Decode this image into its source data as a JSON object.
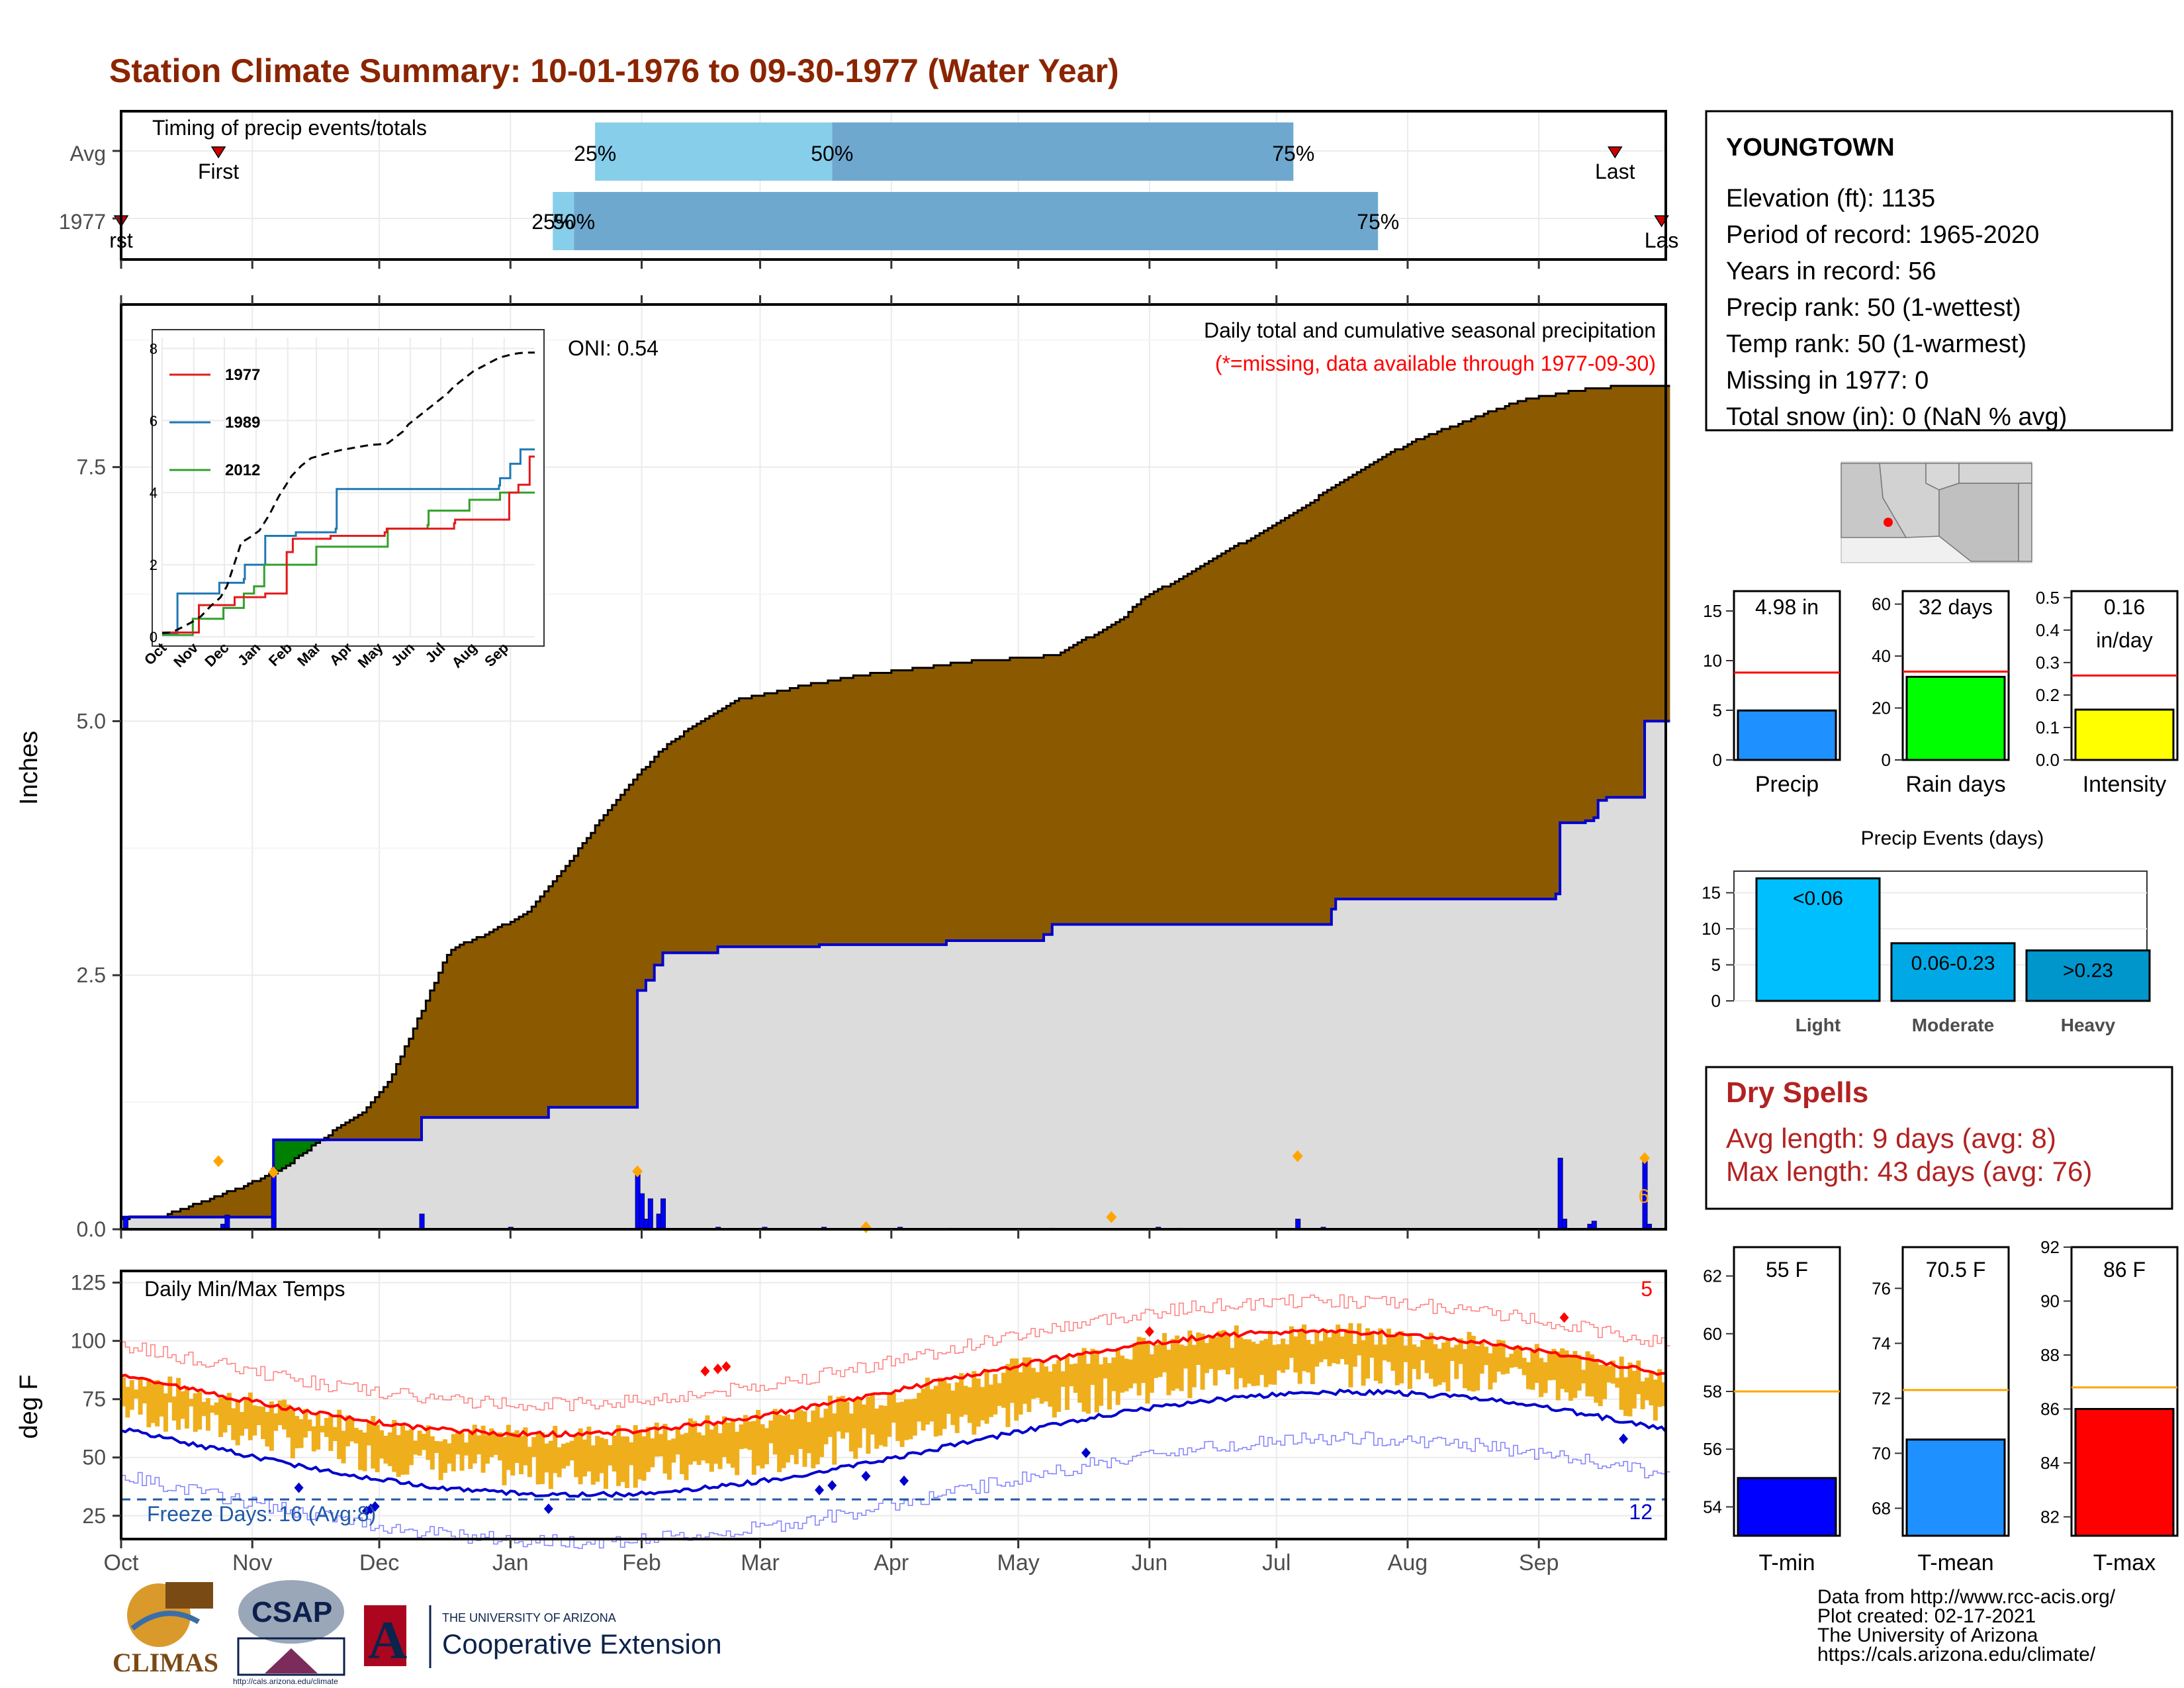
{
  "title": "Station Climate Summary: 10-01-1976 to 09-30-1977 (Water Year)",
  "months": [
    "Oct",
    "Nov",
    "Dec",
    "Jan",
    "Feb",
    "Mar",
    "Apr",
    "May",
    "Jun",
    "Jul",
    "Aug",
    "Sep"
  ],
  "timing": {
    "label": "Timing of precip events/totals",
    "rows": [
      "Avg",
      "1977"
    ],
    "pct_labels": [
      "25%",
      "50%",
      "75%"
    ],
    "first_label": "First",
    "last_label": "Last",
    "first_label_clipped": "rst",
    "last_label_clipped": "Las",
    "avg": {
      "first_day": 23,
      "p25": 112,
      "p50": 168,
      "p75": 277,
      "last_day": 353
    },
    "yr": {
      "first_day": 0,
      "p25": 102,
      "p50": 107,
      "p75": 297,
      "last_day": 364
    }
  },
  "precip": {
    "ylabel": "Inches",
    "oni": "ONI: 0.54",
    "caption1": "Daily total and cumulative seasonal precipitation",
    "caption2": "(*=missing, data available through 1977-09-30)",
    "side_count": "6",
    "yticks": [
      "0.0",
      "2.5",
      "5.0",
      "7.5"
    ],
    "avg_cum": [
      [
        0,
        0.1
      ],
      [
        15,
        0.14
      ],
      [
        30,
        0.27
      ],
      [
        45,
        0.42
      ],
      [
        60,
        0.6
      ],
      [
        75,
        0.85
      ],
      [
        90,
        1.12
      ],
      [
        100,
        1.55
      ],
      [
        110,
        2.12
      ],
      [
        122,
        2.75
      ],
      [
        135,
        2.95
      ],
      [
        150,
        3.15
      ],
      [
        165,
        3.6
      ],
      [
        180,
        4.1
      ],
      [
        200,
        4.6
      ],
      [
        220,
        5.0
      ],
      [
        245,
        5.28
      ],
      [
        275,
        5.45
      ],
      [
        300,
        5.55
      ],
      [
        330,
        5.6
      ],
      [
        348,
        5.62
      ],
      [
        365,
        5.62
      ],
      [
        380,
        5.7
      ],
      [
        400,
        6.0
      ],
      [
        420,
        6.25
      ],
      [
        440,
        6.52
      ],
      [
        460,
        6.95
      ],
      [
        480,
        7.3
      ],
      [
        500,
        7.6
      ],
      [
        520,
        7.8
      ],
      [
        545,
        8.1
      ],
      [
        575,
        8.28
      ]
    ],
    "avg_cum_note": "",
    "season_avg": [
      [
        0,
        0.11
      ],
      [
        15,
        0.13
      ],
      [
        30,
        0.27
      ],
      [
        45,
        0.42
      ],
      [
        60,
        0.6
      ],
      [
        75,
        0.9
      ],
      [
        90,
        1.15
      ],
      [
        100,
        1.48
      ],
      [
        110,
        2.05
      ],
      [
        122,
        2.75
      ],
      [
        135,
        2.9
      ],
      [
        150,
        3.1
      ],
      [
        165,
        3.55
      ],
      [
        180,
        4.1
      ],
      [
        190,
        4.4
      ],
      [
        200,
        4.7
      ],
      [
        215,
        5.0
      ],
      [
        230,
        5.22
      ],
      [
        245,
        5.3
      ],
      [
        260,
        5.38
      ],
      [
        275,
        5.45
      ],
      [
        290,
        5.5
      ],
      [
        305,
        5.55
      ],
      [
        320,
        5.6
      ],
      [
        335,
        5.62
      ],
      [
        348,
        5.65
      ],
      [
        355,
        5.75
      ],
      [
        365,
        5.9
      ],
      [
        372,
        6.0
      ],
      [
        380,
        6.2
      ],
      [
        390,
        6.35
      ],
      [
        400,
        6.5
      ],
      [
        410,
        6.65
      ],
      [
        420,
        6.8
      ],
      [
        430,
        6.95
      ],
      [
        440,
        7.1
      ],
      [
        450,
        7.3
      ],
      [
        460,
        7.45
      ],
      [
        470,
        7.6
      ],
      [
        480,
        7.75
      ],
      [
        490,
        7.85
      ],
      [
        500,
        7.95
      ],
      [
        510,
        8.05
      ],
      [
        520,
        8.15
      ],
      [
        530,
        8.2
      ],
      [
        540,
        8.25
      ],
      [
        550,
        8.28
      ],
      [
        560,
        8.3
      ],
      [
        575,
        8.3
      ]
    ],
    "yr_cum_steps": [
      [
        0,
        0.11
      ],
      [
        24,
        0.13
      ],
      [
        25,
        0.13
      ],
      [
        35,
        0.3
      ],
      [
        36,
        0.88
      ],
      [
        70,
        0.88
      ],
      [
        71,
        1.1
      ],
      [
        92,
        1.1
      ],
      [
        93,
        1.2
      ],
      [
        101,
        1.2
      ],
      [
        102,
        1.2
      ],
      [
        121,
        1.2
      ],
      [
        122,
        2.35
      ],
      [
        124,
        2.45
      ],
      [
        126,
        2.6
      ],
      [
        128,
        2.72
      ],
      [
        141,
        2.78
      ],
      [
        165,
        2.8
      ],
      [
        166,
        2.8
      ],
      [
        195,
        2.84
      ],
      [
        200,
        2.84
      ],
      [
        218,
        2.9
      ],
      [
        220,
        3.0
      ],
      [
        277,
        3.0
      ],
      [
        278,
        3.02
      ],
      [
        285,
        3.02
      ],
      [
        286,
        3.15
      ],
      [
        287,
        3.25
      ],
      [
        339,
        3.3
      ],
      [
        340,
        4.0
      ],
      [
        370,
        4.0
      ],
      [
        371,
        4.02
      ],
      [
        372,
        4.05
      ],
      [
        373,
        4.1
      ],
      [
        374,
        4.15
      ],
      [
        375,
        4.2
      ],
      [
        376,
        4.25
      ],
      [
        377,
        4.3
      ],
      [
        378,
        4.38
      ],
      [
        379,
        4.42
      ],
      [
        380,
        4.45
      ],
      [
        381,
        4.5
      ],
      [
        382,
        4.55
      ],
      [
        383,
        4.6
      ],
      [
        384,
        4.68
      ],
      [
        385,
        4.7
      ],
      [
        386,
        4.75
      ],
      [
        387,
        4.78
      ],
      [
        388,
        4.8
      ],
      [
        389,
        4.85
      ],
      [
        390,
        4.88
      ],
      [
        391,
        4.9
      ],
      [
        392,
        4.95
      ],
      [
        393,
        5.0
      ],
      [
        394,
        5.02
      ],
      [
        395,
        5.03
      ],
      [
        396,
        5.05
      ],
      [
        397,
        5.07
      ],
      [
        398,
        5.08
      ],
      [
        399,
        5.1
      ],
      [
        400,
        5.12
      ],
      [
        401,
        5.14
      ]
    ],
    "yr_cum": [
      [
        0,
        0.12
      ],
      [
        24,
        0.12
      ],
      [
        36,
        0.88
      ],
      [
        71,
        1.1
      ],
      [
        101,
        1.2
      ],
      [
        102,
        1.2
      ],
      [
        122,
        2.35
      ],
      [
        124,
        2.45
      ],
      [
        126,
        2.6
      ],
      [
        128,
        2.72
      ],
      [
        141,
        2.78
      ],
      [
        165,
        2.8
      ],
      [
        195,
        2.84
      ],
      [
        218,
        2.9
      ],
      [
        220,
        3.0
      ],
      [
        278,
        3.0
      ],
      [
        286,
        3.15
      ],
      [
        287,
        3.25
      ],
      [
        339,
        3.3
      ],
      [
        340,
        4.0
      ],
      [
        345,
        4.0
      ],
      [
        346,
        4.02
      ],
      [
        348,
        4.05
      ],
      [
        349,
        4.22
      ],
      [
        351,
        4.25
      ],
      [
        359,
        4.25
      ],
      [
        360,
        5.0
      ],
      [
        365,
        5.0
      ]
    ],
    "daily": [
      [
        1,
        0.12
      ],
      [
        24,
        0.05
      ],
      [
        25,
        0.14
      ],
      [
        36,
        0.6
      ],
      [
        71,
        0.15
      ],
      [
        92,
        0.02
      ],
      [
        122,
        0.55
      ],
      [
        123,
        0.35
      ],
      [
        124,
        0.1
      ],
      [
        125,
        0.3
      ],
      [
        127,
        0.15
      ],
      [
        128,
        0.3
      ],
      [
        141,
        0.02
      ],
      [
        152,
        0.02
      ],
      [
        166,
        0.02
      ],
      [
        184,
        0.02
      ],
      [
        196,
        0.01
      ],
      [
        220,
        0.01
      ],
      [
        245,
        0.02
      ],
      [
        250,
        0.01
      ],
      [
        278,
        0.1
      ],
      [
        284,
        0.02
      ],
      [
        340,
        0.7
      ],
      [
        341,
        0.1
      ],
      [
        346,
        0.01
      ],
      [
        347,
        0.05
      ],
      [
        348,
        0.08
      ],
      [
        360,
        0.72
      ],
      [
        361,
        0.05
      ]
    ],
    "diamonds": [
      [
        23,
        0.67
      ],
      [
        36,
        0.56
      ],
      [
        122,
        0.57
      ],
      [
        176,
        0.02
      ],
      [
        234,
        0.12
      ],
      [
        278,
        0.72
      ],
      [
        360,
        0.7
      ]
    ],
    "inset": {
      "legend": [
        "1977",
        "1989",
        "2012"
      ],
      "yticks": [
        "0",
        "2",
        "4",
        "6",
        "8"
      ],
      "xticks": [
        "Oct",
        "Nov",
        "Dec",
        "Jan",
        "Feb",
        "Mar",
        "Apr",
        "May",
        "Jun",
        "Jul",
        "Aug",
        "Sep"
      ]
    }
  },
  "temps": {
    "ylabel": "deg F",
    "label": "Daily Min/Max Temps",
    "freeze": "Freeze Days: 16 (Avg:8)",
    "hot_count": "5",
    "cold_count": "12",
    "yticks": [
      "25",
      "50",
      "75",
      "100",
      "125"
    ]
  },
  "station": {
    "name": "YOUNGTOWN",
    "lines": [
      "Elevation (ft): 1135",
      "Period of record: 1965-2020",
      "Years in record: 56",
      "Precip rank: 50 (1-wettest)",
      "Temp rank: 50 (1-warmest)",
      "Missing in 1977: 0",
      "Total snow (in): 0 (NaN % avg)"
    ]
  },
  "mini_bars": [
    {
      "label": "Precip",
      "value_text": "4.98 in",
      "value": 4.98,
      "avg": 8.8,
      "max": 17,
      "yticks": [
        "0",
        "5",
        "10",
        "15"
      ],
      "color": "#1e90ff"
    },
    {
      "label": "Rain days",
      "value_text": "32 days",
      "value": 32,
      "avg": 34,
      "max": 65,
      "yticks": [
        "0",
        "20",
        "40",
        "60"
      ],
      "color": "#00ff00"
    },
    {
      "label": "Intensity",
      "value_text": "0.16",
      "value_text2": "in/day",
      "value": 0.155,
      "avg": 0.26,
      "max": 0.52,
      "yticks": [
        "0.0",
        "0.1",
        "0.2",
        "0.3",
        "0.4",
        "0.5"
      ],
      "color": "#ffff00"
    }
  ],
  "events": {
    "title": "Precip Events (days)",
    "categories": [
      "Light",
      "Moderate",
      "Heavy"
    ],
    "labels": [
      "<0.06",
      "0.06-0.23",
      ">0.23"
    ],
    "values": [
      17,
      8,
      7
    ],
    "colors": [
      "#00bfff",
      "#00a9e6",
      "#0096cc"
    ],
    "yticks": [
      "0",
      "5",
      "10",
      "15"
    ]
  },
  "dry": {
    "title": "Dry Spells",
    "avg": "Avg length: 9 days (avg: 8)",
    "max": "Max length: 43 days (avg: 76)"
  },
  "temp_bars": [
    {
      "label": "T-min",
      "value_text": "55 F",
      "value": 55,
      "avg": 58,
      "min": 53,
      "max": 63,
      "yticks": [
        "54",
        "56",
        "58",
        "60",
        "62"
      ],
      "color": "#0000ff"
    },
    {
      "label": "T-mean",
      "value_text": "70.5 F",
      "value": 70.5,
      "avg": 72.3,
      "min": 67,
      "max": 77.5,
      "yticks": [
        "68",
        "70",
        "72",
        "74",
        "76"
      ],
      "color": "#1e90ff"
    },
    {
      "label": "T-max",
      "value_text": "86 F",
      "value": 86,
      "avg": 86.8,
      "min": 81.3,
      "max": 92,
      "yticks": [
        "82",
        "84",
        "86",
        "88",
        "90",
        "92"
      ],
      "color": "#ff0000"
    }
  ],
  "credits": [
    "Data from http://www.rcc-acis.org/",
    "Plot created: 02-17-2021",
    "The University of Arizona",
    "https://cals.arizona.edu/climate/"
  ],
  "logos": {
    "climas": "CLIMAS",
    "csap": "CSAP",
    "csap_url": "http://cals.arizona.edu/climate",
    "ua_small": "THE UNIVERSITY OF ARIZONA",
    "ua_big": "Cooperative Extension",
    "ua_letter": "A"
  },
  "colors": {
    "title": "#8b2500",
    "brown": "#8b5a00",
    "green": "#008000",
    "gray": "#dcdcdc",
    "blue": "#0000cd",
    "orange": "#ffa500",
    "temp_fill": "#efae1c",
    "red": "#ff0000",
    "dry": "#b22222"
  }
}
